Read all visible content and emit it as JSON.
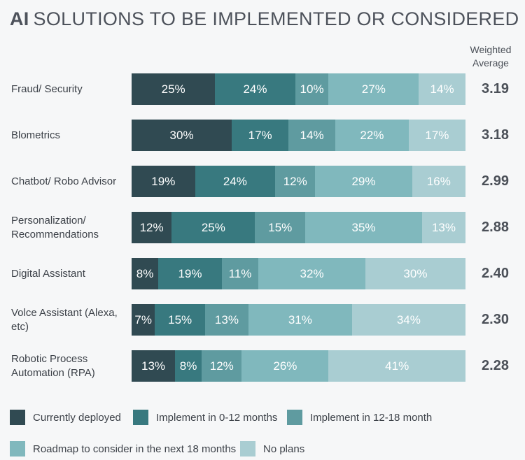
{
  "title": {
    "ai": "AI",
    "rest": "SOLUTIONS TO BE IMPLEMENTED OR CONSIDERED"
  },
  "weighted_average_header": {
    "line1": "Weighted",
    "line2": "Average"
  },
  "chart_data": {
    "type": "bar",
    "orientation": "horizontal",
    "stacked": true,
    "unit": "%",
    "xlim": [
      0,
      100
    ],
    "grid": false,
    "legend_position": "bottom",
    "series_names": [
      "Currently deployed",
      "Implement in 0-12 months",
      "Implement in 12-18 month",
      "Roadmap to consider in the next 18 months",
      "No plans"
    ],
    "series_colors": [
      "#304a52",
      "#38797f",
      "#5f9ba0",
      "#80b8bd",
      "#a9cdd2"
    ],
    "value_suffix": "%",
    "rows": [
      {
        "label": "Fraud/ Security",
        "values": [
          25,
          24,
          10,
          27,
          14
        ],
        "weighted_average": "3.19"
      },
      {
        "label": "Blometrics",
        "values": [
          30,
          17,
          14,
          22,
          17
        ],
        "weighted_average": "3.18"
      },
      {
        "label": "Chatbot/ Robo Advisor",
        "values": [
          19,
          24,
          12,
          29,
          16
        ],
        "weighted_average": "2.99"
      },
      {
        "label": "Personalization/ Recommendations",
        "values": [
          12,
          25,
          15,
          35,
          13
        ],
        "weighted_average": "2.88"
      },
      {
        "label": "Digital Assistant",
        "values": [
          8,
          19,
          11,
          32,
          30
        ],
        "weighted_average": "2.40"
      },
      {
        "label": "Volce Assistant (Alexa, etc)",
        "values": [
          7,
          15,
          13,
          31,
          34
        ],
        "weighted_average": "2.30"
      },
      {
        "label": "Robotic Process Automation (RPA)",
        "values": [
          13,
          8,
          12,
          26,
          41
        ],
        "weighted_average": "2.28"
      }
    ]
  },
  "legend": {
    "rows": [
      [
        {
          "label": "Currently deployed",
          "color": "#304a52"
        },
        {
          "label": "Implement in 0-12 months",
          "color": "#38797f"
        },
        {
          "label": "Implement in 12-18 month",
          "color": "#5f9ba0"
        }
      ],
      [
        {
          "label": "Roadmap to consider in the next 18 months",
          "color": "#80b8bd"
        },
        {
          "label": "No plans",
          "color": "#a9cdd2"
        }
      ]
    ]
  },
  "colors": {
    "background": "#f6f7f8",
    "title_text": "#4d525b",
    "label_text": "#3d4249",
    "average_text": "#4b5058",
    "segment_text": "#ffffff"
  }
}
